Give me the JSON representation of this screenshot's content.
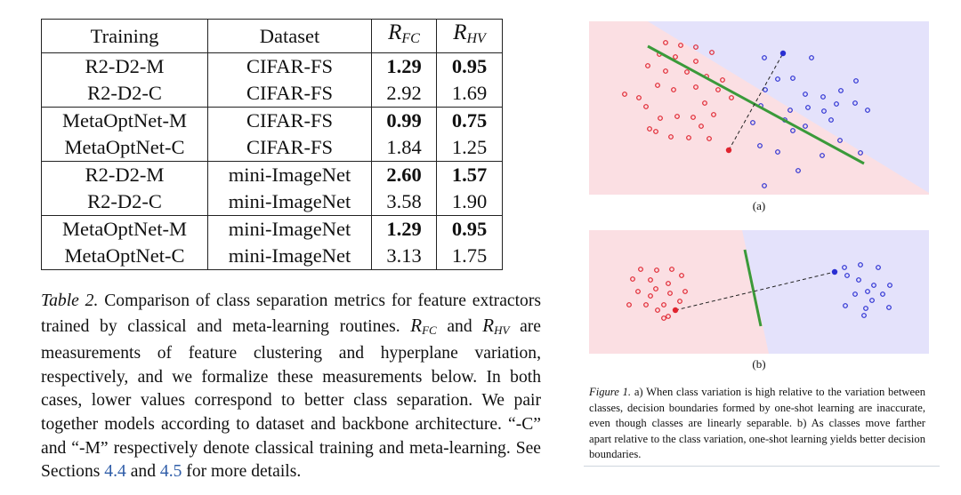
{
  "table": {
    "headers": {
      "training": "Training",
      "dataset": "Dataset",
      "rfc_base": "R",
      "rfc_sub": "FC",
      "rhv_base": "R",
      "rhv_sub": "HV"
    },
    "rows": [
      {
        "training": "R2-D2-M",
        "dataset": "CIFAR-FS",
        "rfc": "1.29",
        "rhv": "0.95",
        "bold": true
      },
      {
        "training": "R2-D2-C",
        "dataset": "CIFAR-FS",
        "rfc": "2.92",
        "rhv": "1.69",
        "bold": false
      },
      {
        "training": "MetaOptNet-M",
        "dataset": "CIFAR-FS",
        "rfc": "0.99",
        "rhv": "0.75",
        "bold": true
      },
      {
        "training": "MetaOptNet-C",
        "dataset": "CIFAR-FS",
        "rfc": "1.84",
        "rhv": "1.25",
        "bold": false
      },
      {
        "training": "R2-D2-M",
        "dataset": "mini-ImageNet",
        "rfc": "2.60",
        "rhv": "1.57",
        "bold": true
      },
      {
        "training": "R2-D2-C",
        "dataset": "mini-ImageNet",
        "rfc": "3.58",
        "rhv": "1.90",
        "bold": false
      },
      {
        "training": "MetaOptNet-M",
        "dataset": "mini-ImageNet",
        "rfc": "1.29",
        "rhv": "0.95",
        "bold": true
      },
      {
        "training": "MetaOptNet-C",
        "dataset": "mini-ImageNet",
        "rfc": "3.13",
        "rhv": "1.75",
        "bold": false
      }
    ]
  },
  "caption": {
    "label": "Table 2.",
    "t1": " Comparison of class separation metrics for feature extractors trained by classical and meta-learning routines. ",
    "m1_base": "R",
    "m1_sub": "FC",
    "t2": " and ",
    "m2_base": "R",
    "m2_sub": "HV",
    "t3": " are measurements of feature clustering and hyperplane variation, respectively, and we formalize these measurements below. In both cases, lower values correspond to better class separation. We pair together models according to dataset and backbone architecture. “-C” and “-M” respectively denote classical training and meta-learning. See Sections ",
    "ref1": "4.4",
    "t4": " and ",
    "ref2": "4.5",
    "t5": " for more details."
  },
  "figure": {
    "label_a": "(a)",
    "label_b": "(b)",
    "caption_label": "Figure 1.",
    "caption_text": " a) When class variation is high relative to the variation between classes, decision boundaries formed by one-shot learning are inaccurate, even though classes are linearly separable. b) As classes move farther apart relative to the class variation, one-shot learning yields better decision boundaries.",
    "colors": {
      "red_region": "#fbdfe3",
      "blue_region": "#e4e2fb",
      "red_points": "#e0242f",
      "blue_points": "#2a2fd2",
      "boundary": "#3a9a3a"
    }
  }
}
